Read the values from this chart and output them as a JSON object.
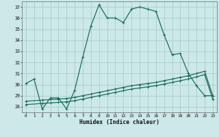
{
  "title": "",
  "xlabel": "Humidex (Indice chaleur)",
  "xlim": [
    -0.5,
    23.5
  ],
  "ylim": [
    27.5,
    37.5
  ],
  "yticks": [
    28,
    29,
    30,
    31,
    32,
    33,
    34,
    35,
    36,
    37
  ],
  "xticks": [
    0,
    1,
    2,
    3,
    4,
    5,
    6,
    7,
    8,
    9,
    10,
    11,
    12,
    13,
    14,
    15,
    16,
    17,
    18,
    19,
    20,
    21,
    22,
    23
  ],
  "bg_color": "#cce8e8",
  "grid_color": "#aacccc",
  "line_color": "#1a6b5a",
  "line1_x": [
    0,
    1,
    2,
    3,
    4,
    5,
    6,
    7,
    8,
    9,
    10,
    11,
    12,
    13,
    14,
    15,
    16,
    17,
    18,
    19,
    20,
    21,
    22,
    23
  ],
  "line1_y": [
    30.1,
    30.5,
    27.8,
    28.8,
    28.8,
    27.8,
    29.5,
    32.5,
    35.3,
    37.2,
    36.0,
    36.0,
    35.6,
    36.8,
    37.0,
    36.8,
    36.6,
    34.5,
    32.7,
    32.8,
    31.0,
    29.9,
    29.0,
    29.0
  ],
  "line2_x": [
    0,
    2,
    3,
    4,
    5,
    6,
    7,
    8,
    9,
    10,
    11,
    12,
    13,
    14,
    15,
    16,
    17,
    18,
    19,
    20,
    21,
    22,
    23
  ],
  "line2_y": [
    28.5,
    28.6,
    28.65,
    28.7,
    28.75,
    28.85,
    29.0,
    29.15,
    29.3,
    29.45,
    29.6,
    29.75,
    29.9,
    30.0,
    30.1,
    30.2,
    30.35,
    30.5,
    30.65,
    30.8,
    31.0,
    31.2,
    29.0
  ],
  "line3_x": [
    0,
    2,
    3,
    4,
    5,
    6,
    7,
    8,
    9,
    10,
    11,
    12,
    13,
    14,
    15,
    16,
    17,
    18,
    19,
    20,
    21,
    22,
    23
  ],
  "line3_y": [
    28.2,
    28.3,
    28.35,
    28.4,
    28.45,
    28.55,
    28.7,
    28.85,
    29.0,
    29.15,
    29.3,
    29.45,
    29.6,
    29.7,
    29.8,
    29.9,
    30.05,
    30.2,
    30.35,
    30.5,
    30.7,
    30.9,
    28.7
  ]
}
